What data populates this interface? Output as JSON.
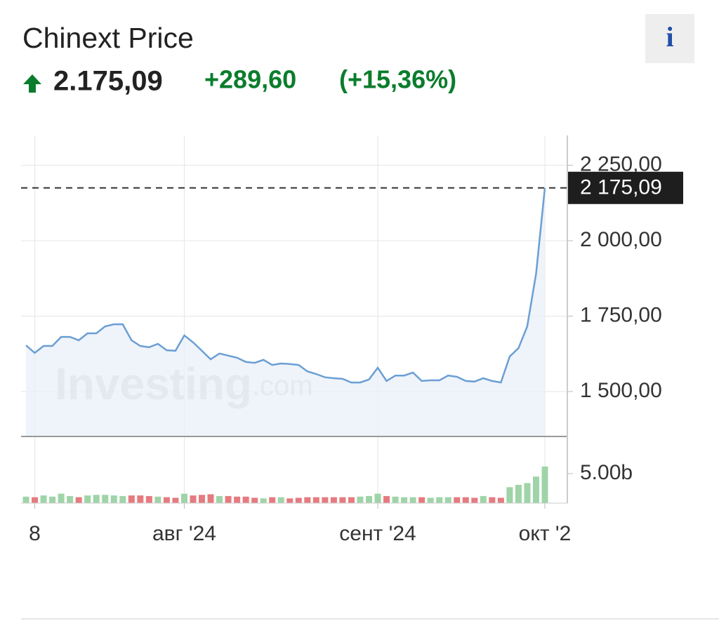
{
  "header": {
    "title": "Chinext Price",
    "price": "2.175,09",
    "change": "+289,60",
    "change_pct": "(+15,36%)",
    "info": "i"
  },
  "chart_data": {
    "type": "line",
    "watermark": "Investing",
    "watermark_suffix": ".com",
    "categories": [
      null,
      "8",
      null,
      null,
      null,
      null,
      null,
      null,
      null,
      null,
      null,
      null,
      null,
      null,
      null,
      null,
      null,
      null,
      "авг '24",
      null,
      null,
      null,
      null,
      null,
      null,
      null,
      null,
      null,
      null,
      null,
      null,
      null,
      null,
      null,
      null,
      null,
      null,
      null,
      null,
      null,
      "сент '24",
      null,
      null,
      null,
      null,
      null,
      null,
      null,
      null,
      null,
      null,
      null,
      null,
      null,
      null,
      null,
      null,
      null,
      null,
      "окт '2"
    ],
    "series": [
      {
        "name": "Price",
        "color": "#6a9fd4",
        "fill": "#e9eff8",
        "values": [
          1653,
          1628,
          1651,
          1651,
          1681,
          1681,
          1670,
          1693,
          1693,
          1716,
          1723,
          1723,
          1670,
          1651,
          1647,
          1658,
          1637,
          1635,
          1686,
          1663,
          1635,
          1607,
          1626,
          1619,
          1612,
          1598,
          1595,
          1605,
          1588,
          1593,
          1591,
          1588,
          1567,
          1558,
          1547,
          1544,
          1542,
          1530,
          1530,
          1540,
          1579,
          1535,
          1553,
          1553,
          1563,
          1535,
          1537,
          1537,
          1553,
          1549,
          1535,
          1533,
          1544,
          1535,
          1530,
          1616,
          1644,
          1716,
          1891,
          2175.09
        ]
      },
      {
        "name": "Volume",
        "axis": "y2",
        "up_color": "#9fd4a8",
        "down_color": "#e57b80",
        "values": [
          1.1,
          1.0,
          1.3,
          1.1,
          1.6,
          1.2,
          1.0,
          1.3,
          1.4,
          1.4,
          1.3,
          1.2,
          1.3,
          1.3,
          1.2,
          1.1,
          1.0,
          0.9,
          1.6,
          1.3,
          1.4,
          1.5,
          1.2,
          1.2,
          1.1,
          1.1,
          0.9,
          0.8,
          1.0,
          1.0,
          0.8,
          0.9,
          1.0,
          1.0,
          1.0,
          1.0,
          1.0,
          1.0,
          1.1,
          1.2,
          1.6,
          1.2,
          1.1,
          1.0,
          1.0,
          1.0,
          0.9,
          1.0,
          1.0,
          1.0,
          1.0,
          0.9,
          1.2,
          1.0,
          0.9,
          2.7,
          3.1,
          3.4,
          4.5,
          6.2
        ]
      }
    ],
    "ylim": [
      1351,
      2349
    ],
    "yticks": [
      {
        "value": 1500,
        "label": "1 500,00"
      },
      {
        "value": 1750,
        "label": "1 750,00"
      },
      {
        "value": 2000,
        "label": "2 000,00"
      },
      {
        "value": 2250,
        "label": "2 250,00"
      }
    ],
    "y2lim": [
      0,
      11.3
    ],
    "y2ticks": [
      {
        "value": 5,
        "label": "5.00b"
      }
    ],
    "last_label": "2 175,09",
    "grid": true
  }
}
